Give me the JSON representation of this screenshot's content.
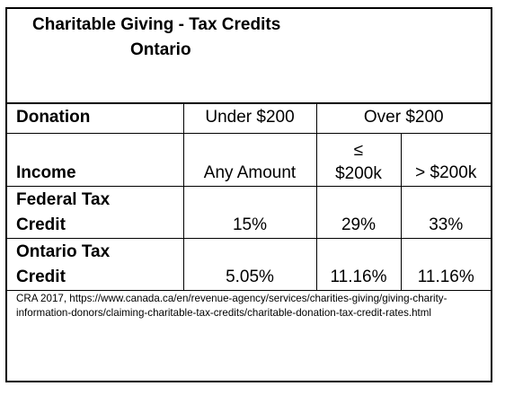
{
  "title": {
    "line1": "Charitable Giving - Tax Credits",
    "line2": "Ontario"
  },
  "table": {
    "header": {
      "label": "Donation",
      "under": "Under $200",
      "over": "Over $200"
    },
    "income_row": {
      "label": "Income",
      "under": "Any Amount",
      "mid_symbol": "≤",
      "mid": "$200k",
      "high": "> $200k"
    },
    "federal_row": {
      "label_line1": "Federal Tax",
      "label_line2": "Credit",
      "under": "15%",
      "mid": "29%",
      "high": "33%"
    },
    "ontario_row": {
      "label_line1": "Ontario Tax",
      "label_line2": "Credit",
      "under": "5.05%",
      "mid": "11.16%",
      "high": "11.16%"
    }
  },
  "source": {
    "line1": "CRA 2017,   https://www.canada.ca/en/revenue-agency/services/charities-giving/giving-charity-",
    "line2": "information-donors/claiming-charitable-tax-credits/charitable-donation-tax-credit-rates.html"
  }
}
